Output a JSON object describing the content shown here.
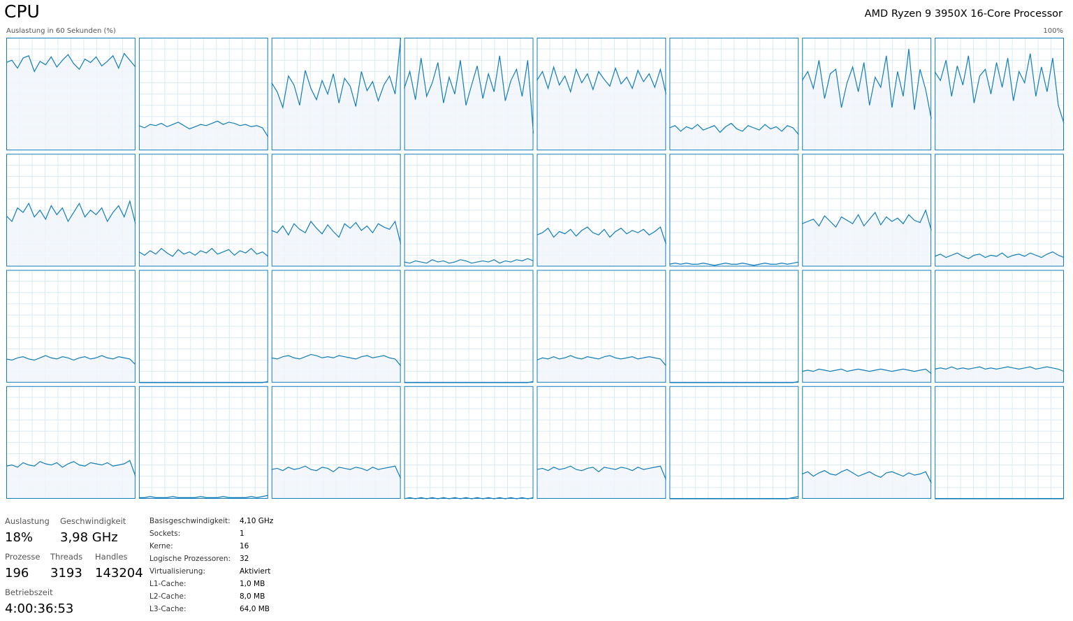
{
  "header": {
    "title": "CPU",
    "processor": "AMD Ryzen 9 3950X 16-Core Processor"
  },
  "graphs": {
    "caption": "Auslastung in 60 Sekunden (%)",
    "max_label": "100%",
    "ylim": [
      0,
      100
    ],
    "color": "#117dbb",
    "fill": "#f1f6fa",
    "grid_color": "#d9eaf4",
    "cores": [
      [
        78,
        80,
        73,
        82,
        84,
        70,
        79,
        76,
        83,
        74,
        80,
        85,
        77,
        72,
        81,
        78,
        83,
        75,
        79,
        84,
        73,
        86,
        80,
        74
      ],
      [
        22,
        20,
        23,
        22,
        24,
        21,
        23,
        25,
        22,
        19,
        21,
        23,
        22,
        24,
        26,
        23,
        25,
        24,
        22,
        23,
        21,
        22,
        20,
        12
      ],
      [
        60,
        52,
        38,
        66,
        58,
        40,
        71,
        55,
        45,
        62,
        50,
        68,
        42,
        64,
        57,
        39,
        70,
        53,
        61,
        44,
        58,
        66,
        50,
        100
      ],
      [
        55,
        70,
        45,
        82,
        48,
        60,
        78,
        42,
        65,
        50,
        80,
        40,
        58,
        75,
        46,
        68,
        52,
        84,
        44,
        62,
        72,
        48,
        80,
        15
      ],
      [
        62,
        70,
        55,
        74,
        58,
        66,
        52,
        72,
        60,
        68,
        54,
        70,
        63,
        57,
        73,
        59,
        65,
        55,
        71,
        61,
        68,
        56,
        72,
        50
      ],
      [
        20,
        22,
        17,
        21,
        19,
        23,
        18,
        20,
        22,
        16,
        21,
        24,
        19,
        17,
        22,
        20,
        18,
        23,
        19,
        21,
        17,
        22,
        20,
        14
      ],
      [
        62,
        70,
        55,
        80,
        46,
        68,
        72,
        38,
        60,
        74,
        52,
        78,
        40,
        65,
        56,
        84,
        38,
        70,
        48,
        90,
        36,
        72,
        54,
        28
      ],
      [
        70,
        62,
        80,
        48,
        75,
        58,
        84,
        42,
        66,
        72,
        50,
        78,
        56,
        82,
        44,
        70,
        60,
        86,
        48,
        74,
        52,
        82,
        40,
        24
      ],
      [
        45,
        40,
        52,
        48,
        56,
        44,
        50,
        42,
        54,
        46,
        52,
        40,
        48,
        56,
        44,
        50,
        46,
        52,
        40,
        48,
        54,
        44,
        58,
        38
      ],
      [
        13,
        10,
        14,
        11,
        16,
        12,
        9,
        15,
        11,
        13,
        10,
        14,
        12,
        16,
        11,
        13,
        15,
        10,
        14,
        12,
        16,
        11,
        13,
        9
      ],
      [
        32,
        30,
        36,
        28,
        38,
        33,
        30,
        40,
        34,
        29,
        37,
        31,
        26,
        38,
        34,
        39,
        32,
        36,
        30,
        38,
        35,
        33,
        40,
        20
      ],
      [
        4,
        3,
        5,
        4,
        3,
        6,
        4,
        5,
        3,
        4,
        6,
        5,
        3,
        4,
        5,
        4,
        6,
        3,
        5,
        4,
        6,
        5,
        7,
        5
      ],
      [
        28,
        30,
        34,
        26,
        31,
        29,
        33,
        27,
        32,
        35,
        30,
        28,
        33,
        26,
        31,
        34,
        29,
        32,
        30,
        33,
        28,
        31,
        35,
        20
      ],
      [
        2,
        3,
        2,
        3,
        2,
        2,
        3,
        2,
        1,
        2,
        3,
        2,
        2,
        3,
        2,
        1,
        2,
        3,
        2,
        2,
        3,
        2,
        3,
        4
      ],
      [
        38,
        40,
        42,
        36,
        45,
        40,
        35,
        44,
        41,
        38,
        46,
        36,
        42,
        48,
        37,
        44,
        40,
        43,
        38,
        46,
        41,
        39,
        50,
        32
      ],
      [
        9,
        11,
        8,
        10,
        12,
        9,
        7,
        10,
        11,
        8,
        10,
        9,
        12,
        8,
        10,
        11,
        9,
        12,
        10,
        8,
        11,
        13,
        10,
        8
      ],
      [
        21,
        20,
        22,
        23,
        21,
        20,
        22,
        24,
        22,
        21,
        23,
        22,
        20,
        22,
        23,
        21,
        22,
        24,
        22,
        21,
        23,
        22,
        21,
        16
      ],
      [
        0,
        0,
        0,
        0,
        0,
        0,
        0,
        0,
        0,
        0,
        0,
        0,
        0,
        0,
        0,
        0,
        0,
        0,
        0,
        0,
        0,
        0,
        0,
        1
      ],
      [
        22,
        21,
        23,
        24,
        22,
        21,
        23,
        25,
        24,
        22,
        23,
        22,
        24,
        23,
        22,
        21,
        23,
        24,
        22,
        23,
        24,
        22,
        21,
        15
      ],
      [
        0,
        0,
        0,
        0,
        0,
        0,
        0,
        0,
        0,
        0,
        0,
        0,
        0,
        0,
        0,
        0,
        0,
        0,
        0,
        0,
        0,
        0,
        0,
        1
      ],
      [
        20,
        22,
        21,
        23,
        21,
        22,
        24,
        22,
        21,
        23,
        22,
        21,
        23,
        24,
        22,
        21,
        22,
        23,
        21,
        22,
        23,
        22,
        21,
        15
      ],
      [
        0,
        0,
        0,
        0,
        0,
        0,
        0,
        0,
        0,
        0,
        0,
        0,
        0,
        0,
        0,
        0,
        0,
        0,
        0,
        0,
        0,
        0,
        0,
        1
      ],
      [
        10,
        11,
        10,
        12,
        11,
        10,
        11,
        12,
        10,
        11,
        12,
        11,
        10,
        11,
        12,
        11,
        10,
        11,
        12,
        11,
        10,
        11,
        12,
        8
      ],
      [
        12,
        13,
        12,
        14,
        12,
        13,
        12,
        13,
        14,
        12,
        13,
        12,
        13,
        14,
        13,
        12,
        13,
        14,
        12,
        13,
        14,
        13,
        12,
        10
      ],
      [
        29,
        30,
        28,
        32,
        30,
        29,
        33,
        31,
        30,
        32,
        28,
        31,
        33,
        30,
        29,
        32,
        31,
        30,
        32,
        29,
        30,
        31,
        34,
        20
      ],
      [
        1,
        1,
        2,
        1,
        1,
        1,
        2,
        1,
        1,
        1,
        1,
        2,
        1,
        1,
        1,
        2,
        1,
        1,
        1,
        1,
        2,
        1,
        2,
        3
      ],
      [
        26,
        27,
        25,
        28,
        26,
        27,
        29,
        26,
        25,
        28,
        27,
        24,
        28,
        27,
        26,
        28,
        27,
        25,
        28,
        26,
        27,
        28,
        29,
        18
      ],
      [
        0,
        1,
        0,
        1,
        0,
        1,
        0,
        1,
        0,
        1,
        0,
        1,
        0,
        1,
        0,
        1,
        0,
        1,
        0,
        1,
        0,
        1,
        0,
        1
      ],
      [
        26,
        27,
        25,
        28,
        26,
        27,
        29,
        26,
        25,
        27,
        28,
        24,
        28,
        27,
        26,
        28,
        27,
        25,
        28,
        26,
        27,
        28,
        29,
        17
      ],
      [
        0,
        0,
        0,
        0,
        0,
        0,
        0,
        0,
        0,
        0,
        0,
        0,
        0,
        0,
        0,
        0,
        0,
        0,
        0,
        0,
        0,
        0,
        1,
        2
      ],
      [
        22,
        24,
        20,
        23,
        25,
        22,
        21,
        24,
        26,
        23,
        20,
        22,
        24,
        21,
        19,
        23,
        24,
        22,
        20,
        23,
        21,
        22,
        24,
        14
      ],
      [
        0,
        0,
        0,
        0,
        0,
        0,
        0,
        0,
        0,
        0,
        0,
        0,
        0,
        0,
        0,
        0,
        0,
        0,
        0,
        0,
        0,
        0,
        0,
        0
      ]
    ]
  },
  "stats": {
    "utilization": {
      "label": "Auslastung",
      "value": "18%"
    },
    "speed": {
      "label": "Geschwindigkeit",
      "value": "3,98 GHz"
    },
    "processes": {
      "label": "Prozesse",
      "value": "196"
    },
    "threads": {
      "label": "Threads",
      "value": "3193"
    },
    "handles": {
      "label": "Handles",
      "value": "143204"
    },
    "uptime": {
      "label": "Betriebszeit",
      "value": "4:00:36:53"
    }
  },
  "details": [
    [
      "Basisgeschwindigkeit:",
      "4,10 GHz"
    ],
    [
      "Sockets:",
      "1"
    ],
    [
      "Kerne:",
      "16"
    ],
    [
      "Logische Prozessoren:",
      "32"
    ],
    [
      "Virtualisierung:",
      "Aktiviert"
    ],
    [
      "L1-Cache:",
      "1,0 MB"
    ],
    [
      "L2-Cache:",
      "8,0 MB"
    ],
    [
      "L3-Cache:",
      "64,0 MB"
    ]
  ]
}
